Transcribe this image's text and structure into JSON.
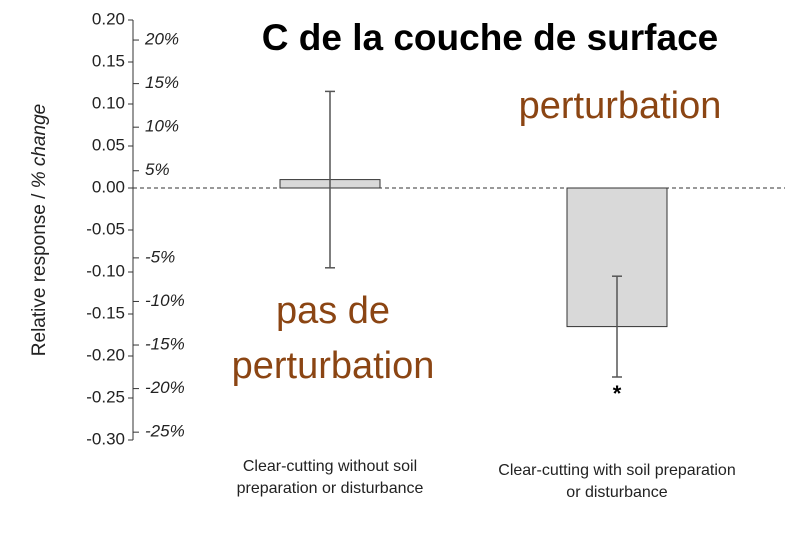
{
  "chart_data": {
    "type": "bar",
    "title": "C de la couche de surface",
    "ylabel": "Relative response / ",
    "ylabel_italic": "% change",
    "categories": [
      "Clear-cutting without soil preparation or disturbance",
      "Clear-cutting with soil preparation or disturbance"
    ],
    "values": [
      0.01,
      -0.165
    ],
    "errors": [
      0.105,
      0.06
    ],
    "color": "#d9d9d9",
    "ylim": [
      -0.3,
      0.2
    ],
    "yticks": [
      {
        "value": -0.3,
        "label": "-0.30"
      },
      {
        "value": -0.25,
        "label": "-0.25"
      },
      {
        "value": -0.2,
        "label": "-0.20"
      },
      {
        "value": -0.15,
        "label": "-0.15"
      },
      {
        "value": -0.1,
        "label": "-0.10"
      },
      {
        "value": -0.05,
        "label": "-0.05"
      },
      {
        "value": 0,
        "label": "0.00"
      },
      {
        "value": 0.05,
        "label": "0.05"
      },
      {
        "value": 0.1,
        "label": "0.10"
      },
      {
        "value": 0.15,
        "label": "0.15"
      },
      {
        "value": 0.2,
        "label": "0.20"
      }
    ],
    "y2lim": [
      -25.9,
      22.3
    ],
    "y2ticks": [
      {
        "value": -25,
        "label": "-25%"
      },
      {
        "value": -20,
        "label": "-20%"
      },
      {
        "value": -15,
        "label": "-15%"
      },
      {
        "value": -10,
        "label": "-10%"
      },
      {
        "value": -5,
        "label": "-5%"
      },
      {
        "value": 5,
        "label": "5%"
      },
      {
        "value": 10,
        "label": "10%"
      },
      {
        "value": 15,
        "label": "15%"
      },
      {
        "value": 20,
        "label": "20%"
      }
    ],
    "annotations": [
      "perturbation",
      "pas de",
      "perturbation",
      "*"
    ]
  }
}
